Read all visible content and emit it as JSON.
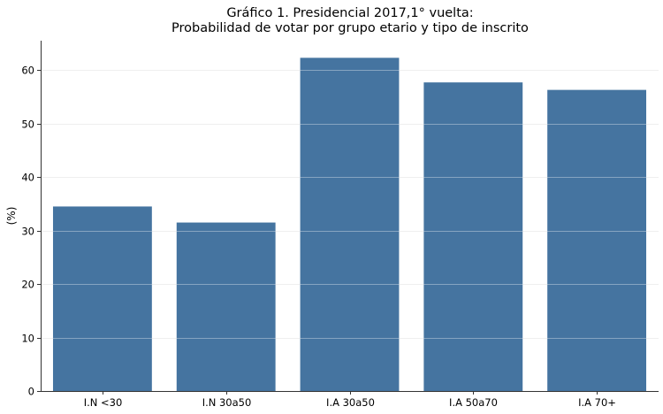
{
  "chart_data": {
    "type": "bar",
    "title": [
      "Gráfico 1. Presidencial 2017,1° vuelta:",
      "Probabilidad de votar por grupo etario y tipo de inscrito"
    ],
    "xlabel": "",
    "ylabel": "(%)",
    "categories": [
      "I.N <30",
      "I.N 30a50",
      "I.A 30a50",
      "I.A 50a70",
      "I.A 70+"
    ],
    "values": [
      34.5,
      31.5,
      62.3,
      57.7,
      56.3
    ],
    "ylim": [
      0,
      65.5
    ],
    "yticks": [
      0,
      10,
      20,
      30,
      40,
      50,
      60
    ],
    "bar_color": "#4574a0",
    "grid": "horizontal",
    "legend": "none"
  }
}
